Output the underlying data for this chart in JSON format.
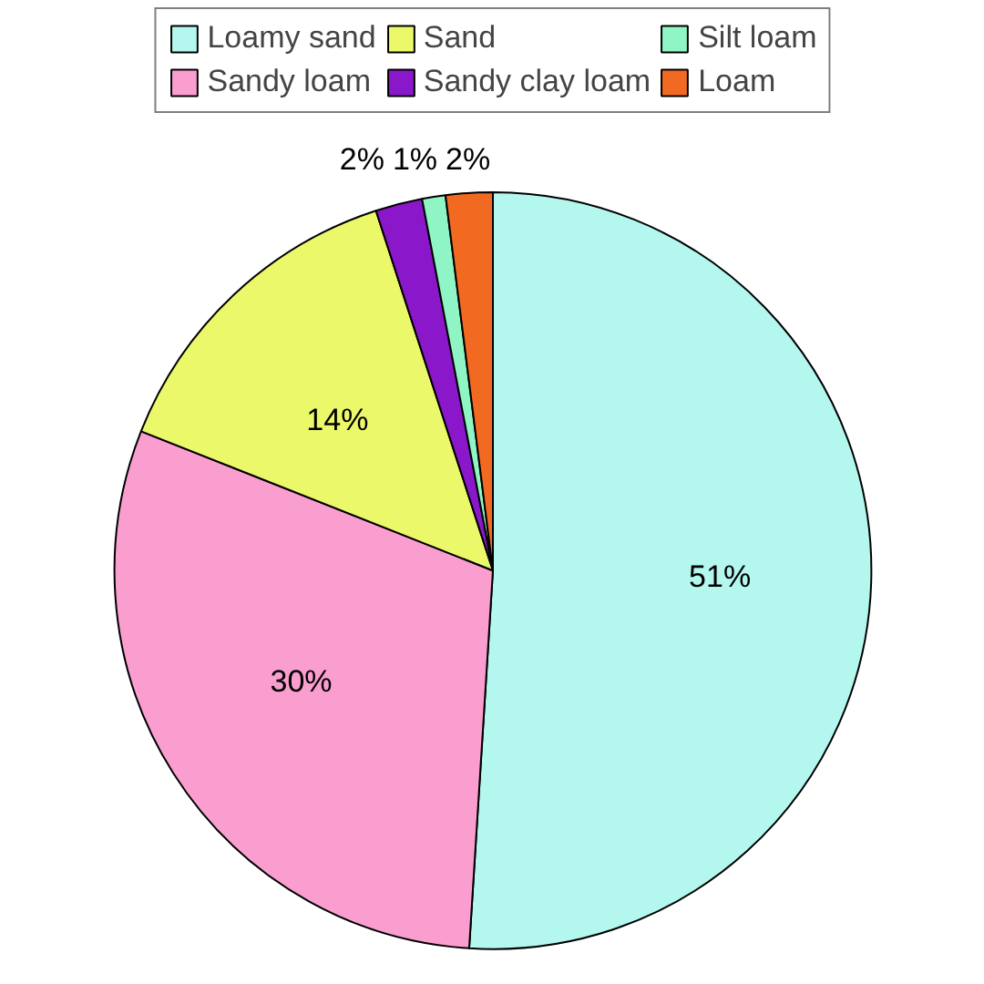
{
  "chart_data": {
    "type": "pie",
    "categories": [
      "Loamy sand",
      "Sandy loam",
      "Sand",
      "Sandy clay loam",
      "Silt loam",
      "Loam"
    ],
    "values": [
      51,
      30,
      14,
      2,
      1,
      2
    ],
    "colors": [
      "#b3f7ee",
      "#fa9ed0",
      "#eaf86a",
      "#8a17c9",
      "#8ff5c4",
      "#f26a22"
    ],
    "value_labels": [
      "51%",
      "30%",
      "14%",
      "2%",
      "1%",
      "2%"
    ],
    "legend": "top"
  }
}
